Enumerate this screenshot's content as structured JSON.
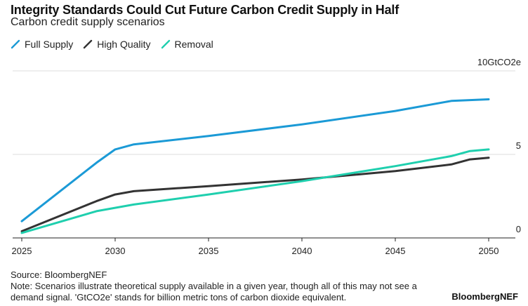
{
  "title": "Integrity Standards Could Cut Future Carbon Credit Supply in Half",
  "subtitle": "Carbon credit supply scenarios",
  "source": "Source: BloombergNEF",
  "note": "Note: Scenarios illustrate theoretical supply available in a given year, though all of this may not see a demand signal. 'GtCO2e' stands for billion metric tons of carbon dioxide equivalent.",
  "brand": "BloombergNEF",
  "chart_data": {
    "type": "line",
    "title": "Integrity Standards Could Cut Future Carbon Credit Supply in Half",
    "subtitle": "Carbon credit supply scenarios",
    "xlim": [
      2025,
      2050
    ],
    "ylim": [
      0,
      10
    ],
    "x_ticks": [
      2025,
      2030,
      2035,
      2040,
      2045,
      2050
    ],
    "y_ticks": [
      0,
      5,
      10
    ],
    "y_tick_labels": [
      "0",
      "5",
      "10GtCO2e"
    ],
    "grid": true,
    "legend_position": "top-left",
    "series": [
      {
        "name": "Full Supply",
        "color": "#1b9ad6",
        "x": [
          2025,
          2029,
          2030,
          2031,
          2035,
          2040,
          2045,
          2048,
          2050
        ],
        "y": [
          1.0,
          4.5,
          5.3,
          5.6,
          6.1,
          6.8,
          7.6,
          8.2,
          8.3
        ]
      },
      {
        "name": "High Quality",
        "color": "#333333",
        "x": [
          2025,
          2029,
          2030,
          2031,
          2035,
          2040,
          2045,
          2048,
          2049,
          2050
        ],
        "y": [
          0.4,
          2.2,
          2.6,
          2.8,
          3.1,
          3.5,
          4.0,
          4.4,
          4.7,
          4.8
        ]
      },
      {
        "name": "Removal",
        "color": "#1fcfae",
        "x": [
          2025,
          2029,
          2031,
          2035,
          2040,
          2045,
          2048,
          2049,
          2050
        ],
        "y": [
          0.3,
          1.6,
          2.0,
          2.6,
          3.4,
          4.3,
          4.9,
          5.2,
          5.3
        ]
      }
    ]
  }
}
